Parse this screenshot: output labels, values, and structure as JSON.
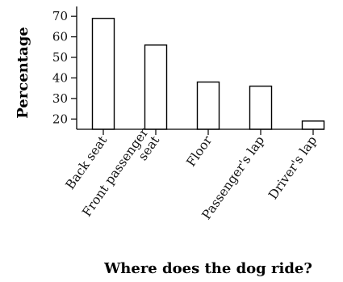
{
  "chart_data": {
    "type": "bar",
    "categories": [
      "Back seat",
      "Front passenger seat",
      "Floor",
      "Passenger's lap",
      "Driver's lap"
    ],
    "category_lines": [
      [
        "Back seat"
      ],
      [
        "Front passenger",
        "seat"
      ],
      [
        "Floor"
      ],
      [
        "Passenger's lap"
      ],
      [
        "Driver's lap"
      ]
    ],
    "values": [
      69,
      56,
      38,
      36,
      19
    ],
    "yticks": [
      20,
      30,
      40,
      50,
      60,
      70
    ],
    "ylim": [
      15,
      74
    ],
    "xlabel": "Where does the dog ride?",
    "ylabel": "Percentage",
    "grid": false,
    "legend": "none",
    "colors": {
      "bar_fill": "#ffffff",
      "bar_stroke": "#000000",
      "axis": "#000000"
    }
  }
}
